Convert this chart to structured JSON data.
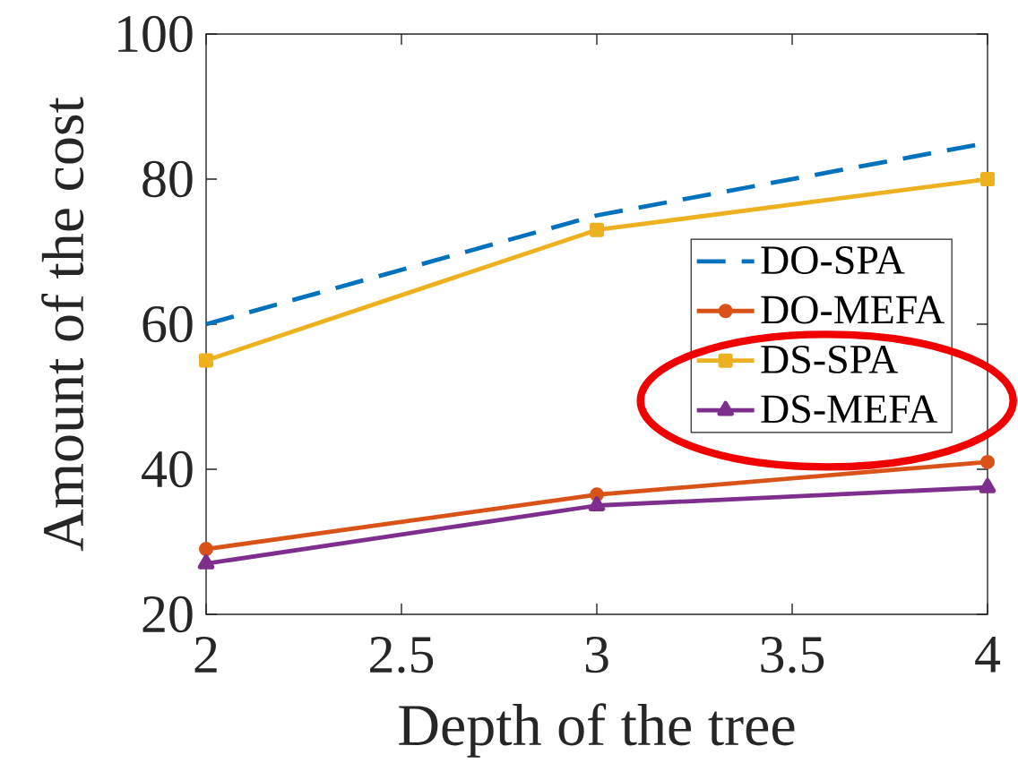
{
  "chart_data": {
    "type": "line",
    "xlabel": "Depth of the tree",
    "ylabel": "Amount of the cost",
    "x": [
      2,
      3,
      4
    ],
    "xlim": [
      2,
      4
    ],
    "ylim": [
      20,
      100
    ],
    "xticks": [
      2,
      2.5,
      3,
      3.5,
      4
    ],
    "yticks": [
      20,
      40,
      60,
      80,
      100
    ],
    "legend": "right",
    "series": [
      {
        "name": "DO-SPA",
        "color": "#0072bd",
        "values": [
          60,
          75,
          85
        ],
        "line_style": "dashed",
        "marker": "none"
      },
      {
        "name": "DO-MEFA",
        "color": "#d95319",
        "values": [
          29,
          36.5,
          41
        ],
        "line_style": "solid",
        "marker": "circle"
      },
      {
        "name": "DS-SPA",
        "color": "#edb120",
        "values": [
          55,
          73,
          80
        ],
        "line_style": "solid",
        "marker": "square"
      },
      {
        "name": "DS-MEFA",
        "color": "#7e2f8e",
        "values": [
          27,
          35,
          37.5
        ],
        "line_style": "solid",
        "marker": "triangle"
      }
    ]
  }
}
